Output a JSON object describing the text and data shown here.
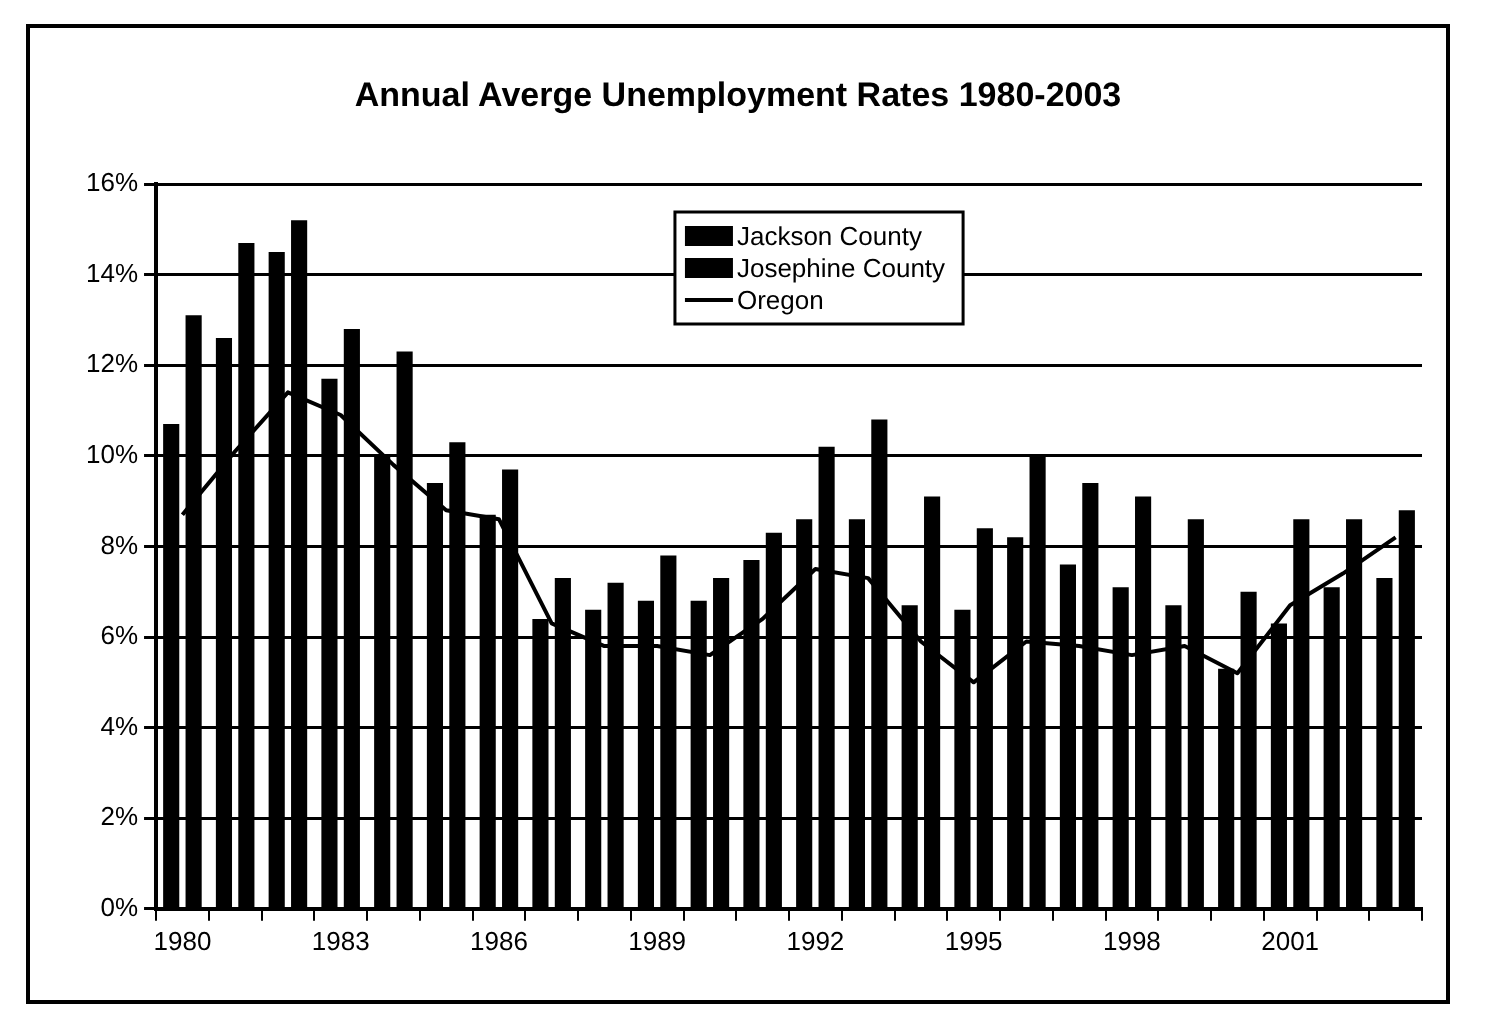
{
  "chart_data": {
    "type": "bar",
    "title": "Annual Averge Unemployment Rates 1980-2003",
    "categories": [
      "1980",
      null,
      null,
      "1983",
      null,
      null,
      "1986",
      null,
      null,
      "1989",
      null,
      null,
      "1992",
      null,
      null,
      "1995",
      null,
      null,
      "1998",
      null,
      null,
      "2001",
      null,
      null
    ],
    "series": [
      {
        "name": "Jackson County",
        "color": "#000000",
        "values": [
          10.7,
          12.6,
          14.5,
          11.7,
          10.0,
          9.4,
          8.7,
          6.4,
          6.6,
          6.8,
          6.8,
          7.7,
          8.6,
          8.6,
          6.7,
          6.6,
          8.2,
          7.6,
          7.1,
          6.7,
          5.3,
          6.3,
          7.1,
          7.3
        ]
      },
      {
        "name": "Josephine County",
        "color": "#000000",
        "values": [
          13.1,
          14.7,
          15.2,
          12.8,
          12.3,
          10.3,
          9.7,
          7.3,
          7.2,
          7.8,
          7.3,
          8.3,
          10.2,
          10.8,
          9.1,
          8.4,
          10.0,
          9.4,
          9.1,
          8.6,
          7.0,
          8.6,
          8.6,
          8.8
        ]
      },
      {
        "name": "Oregon",
        "type": "line",
        "color": "#000000",
        "values": [
          8.7,
          10.1,
          11.4,
          10.9,
          9.8,
          8.8,
          8.6,
          6.3,
          5.8,
          5.8,
          5.6,
          6.4,
          7.5,
          7.3,
          5.9,
          5.0,
          5.9,
          5.8,
          5.6,
          5.8,
          5.2,
          6.7,
          7.4,
          8.2
        ]
      }
    ],
    "ylim": [
      0,
      16
    ],
    "yticks": [
      {
        "value": 0,
        "label": "0%"
      },
      {
        "value": 2,
        "label": "2%"
      },
      {
        "value": 4,
        "label": "4%"
      },
      {
        "value": 6,
        "label": "6%"
      },
      {
        "value": 8,
        "label": "8%"
      },
      {
        "value": 10,
        "label": "10%"
      },
      {
        "value": 12,
        "label": "12%"
      },
      {
        "value": 14,
        "label": "14%"
      },
      {
        "value": 16,
        "label": "16%"
      }
    ],
    "grid": "y",
    "legend": "top",
    "marker": "none",
    "line_style": "solid"
  }
}
